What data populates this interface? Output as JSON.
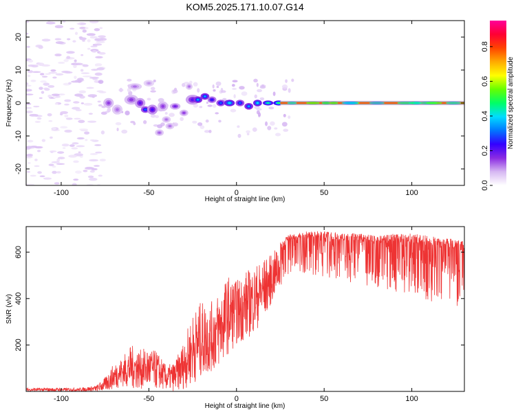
{
  "figure_title": "KOM5.2025.171.10.07.G14",
  "chart_data": [
    {
      "type": "heatmap",
      "xlabel": "Height of straight line (km)",
      "ylabel": "Frequency (Hz)",
      "xlim": [
        -120,
        130
      ],
      "ylim": [
        -25,
        25
      ],
      "xticks": [
        -100,
        -50,
        0,
        50,
        100
      ],
      "yticks": [
        -20,
        -10,
        0,
        10,
        20
      ],
      "colorbar": {
        "label": "Normalized spectral amplitude",
        "range": [
          0,
          0.95
        ],
        "ticks": [
          0.0,
          0.2,
          0.4,
          0.6,
          0.8
        ],
        "colormap": [
          "#ffffff",
          "#d6b7f2",
          "#8a2be2",
          "#3300ff",
          "#0077ff",
          "#00ddff",
          "#00ff66",
          "#66ff00",
          "#ffff00",
          "#ffaa00",
          "#ff4400",
          "#ff0033",
          "#ff0099"
        ]
      },
      "blobs": [
        {
          "x": -73,
          "y": 0,
          "w": 6,
          "h": 3,
          "v": 0.15
        },
        {
          "x": -68,
          "y": -2,
          "w": 6,
          "h": 3,
          "v": 0.12
        },
        {
          "x": -60,
          "y": 1,
          "w": 8,
          "h": 3,
          "v": 0.15
        },
        {
          "x": -55,
          "y": 0,
          "w": 6,
          "h": 3,
          "v": 0.2
        },
        {
          "x": -52,
          "y": -2,
          "w": 5,
          "h": 2,
          "v": 0.3
        },
        {
          "x": -48,
          "y": -2,
          "w": 6,
          "h": 3,
          "v": 0.22
        },
        {
          "x": -58,
          "y": 5,
          "w": 8,
          "h": 2,
          "v": 0.12
        },
        {
          "x": -50,
          "y": 6,
          "w": 6,
          "h": 2,
          "v": 0.1
        },
        {
          "x": -42,
          "y": -1,
          "w": 6,
          "h": 3,
          "v": 0.15
        },
        {
          "x": -40,
          "y": -5,
          "w": 5,
          "h": 2,
          "v": 0.12
        },
        {
          "x": -44,
          "y": -9,
          "w": 5,
          "h": 2,
          "v": 0.13
        },
        {
          "x": -38,
          "y": -7,
          "w": 5,
          "h": 2,
          "v": 0.12
        },
        {
          "x": -35,
          "y": -1,
          "w": 6,
          "h": 2,
          "v": 0.18
        },
        {
          "x": -30,
          "y": -3,
          "w": 5,
          "h": 2,
          "v": 0.15
        },
        {
          "x": -25,
          "y": 1,
          "w": 8,
          "h": 3,
          "v": 0.2
        },
        {
          "x": -22,
          "y": 1,
          "w": 5,
          "h": 2,
          "v": 0.35
        },
        {
          "x": -18,
          "y": 2,
          "w": 5,
          "h": 2,
          "v": 0.35
        },
        {
          "x": -27,
          "y": 5,
          "w": 4,
          "h": 2,
          "v": 0.12
        },
        {
          "x": -14,
          "y": 1,
          "w": 5,
          "h": 2,
          "v": 0.25
        },
        {
          "x": -9,
          "y": 0,
          "w": 5,
          "h": 2,
          "v": 0.3
        },
        {
          "x": -4,
          "y": 0,
          "w": 6,
          "h": 2,
          "v": 0.4
        },
        {
          "x": 2,
          "y": 0,
          "w": 5,
          "h": 2,
          "v": 0.3
        },
        {
          "x": 7,
          "y": -1,
          "w": 5,
          "h": 2,
          "v": 0.35
        },
        {
          "x": 12,
          "y": 0,
          "w": 5,
          "h": 2,
          "v": 0.4
        },
        {
          "x": 18,
          "y": 0,
          "w": 6,
          "h": 1.5,
          "v": 0.45
        },
        {
          "x": 24,
          "y": 0,
          "w": 6,
          "h": 1.5,
          "v": 0.5
        }
      ],
      "band": {
        "x_start": 25,
        "x_end": 130,
        "y": 0,
        "v": 0.85
      }
    },
    {
      "type": "line",
      "xlabel": "Height of straight line (km)",
      "ylabel": "SNR (v/v)",
      "xlim": [
        -120,
        130
      ],
      "ylim": [
        0,
        710
      ],
      "xticks": [
        -100,
        -50,
        0,
        50,
        100
      ],
      "yticks": [
        200,
        400,
        600
      ],
      "series": [
        {
          "color": "#ee3333",
          "envelope": {
            "x": [
              -120,
              -90,
              -80,
              -75,
              -70,
              -65,
              -60,
              -55,
              -50,
              -45,
              -40,
              -35,
              -30,
              -25,
              -20,
              -15,
              -10,
              -5,
              0,
              5,
              10,
              15,
              20,
              25,
              30,
              40,
              50,
              60,
              70,
              80,
              90,
              100,
              110,
              120,
              130
            ],
            "low": [
              0,
              0,
              0,
              0,
              10,
              20,
              10,
              10,
              10,
              10,
              5,
              0,
              10,
              30,
              60,
              80,
              100,
              160,
              200,
              220,
              250,
              300,
              380,
              450,
              500,
              510,
              490,
              480,
              460,
              450,
              430,
              410,
              390,
              370,
              350
            ],
            "high": [
              15,
              15,
              25,
              60,
              120,
              150,
              200,
              180,
              190,
              170,
              110,
              130,
              220,
              340,
              390,
              380,
              430,
              500,
              480,
              520,
              540,
              570,
              590,
              640,
              680,
              690,
              690,
              680,
              680,
              670,
              680,
              680,
              670,
              660,
              650
            ]
          }
        }
      ]
    }
  ]
}
